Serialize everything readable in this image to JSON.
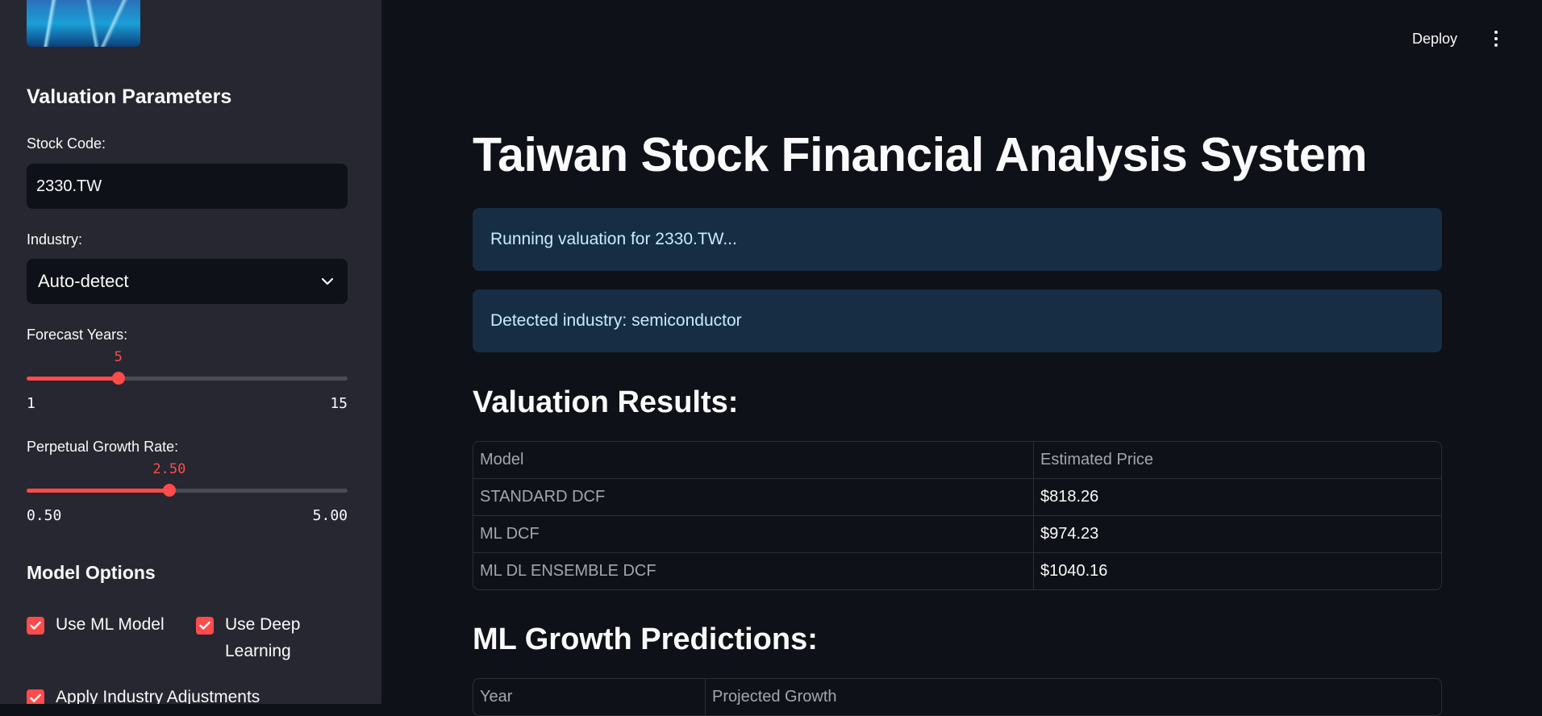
{
  "sidebar": {
    "title": "Valuation Parameters",
    "stock_code": {
      "label": "Stock Code:",
      "value": "2330.TW"
    },
    "industry": {
      "label": "Industry:",
      "selected": "Auto-detect"
    },
    "forecast_years": {
      "label": "Forecast Years:",
      "value": "5",
      "min": "1",
      "max": "15",
      "fraction": 0.2857
    },
    "growth_rate": {
      "label": "Perpetual Growth Rate:",
      "value": "2.50",
      "min": "0.50",
      "max": "5.00",
      "fraction": 0.4444
    },
    "model_options": {
      "title": "Model Options",
      "use_ml": "Use ML Model",
      "use_dl_line1": "Use Deep",
      "use_dl_line2": "Learning",
      "industry_adj": "Apply Industry Adjustments"
    }
  },
  "header": {
    "deploy": "Deploy"
  },
  "main": {
    "title": "Taiwan Stock Financial Analysis System",
    "alerts": [
      "Running valuation for 2330.TW...",
      "Detected industry: semiconductor"
    ],
    "valuation": {
      "heading": "Valuation Results:",
      "columns": [
        "Model",
        "Estimated Price"
      ],
      "rows": [
        [
          "STANDARD DCF",
          "$818.26"
        ],
        [
          "ML DCF",
          "$974.23"
        ],
        [
          "ML DL ENSEMBLE DCF",
          "$1040.16"
        ]
      ]
    },
    "growth": {
      "heading": "ML Growth Predictions:",
      "columns": [
        "Year",
        "Projected Growth"
      ]
    }
  },
  "colors": {
    "accent": "#ff4b4b",
    "sidebar_bg": "#262730",
    "main_bg": "#0e1117",
    "alert_bg": "#172d43"
  }
}
